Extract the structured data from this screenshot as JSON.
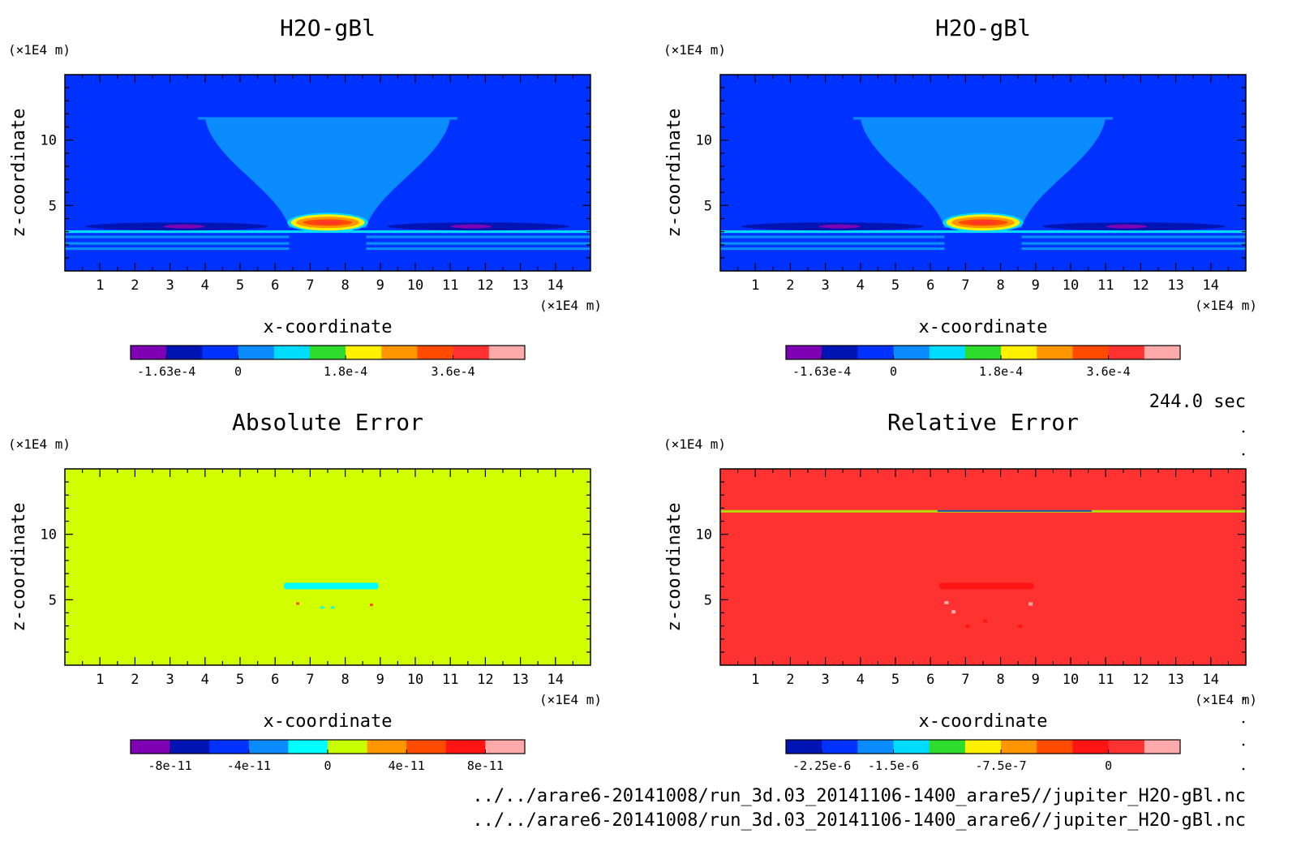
{
  "time_label": "244.0 sec",
  "file_paths": [
    "../../arare6-20141008/run_3d.03_20141106-1400_arare5//jupiter_H2O-gBl.nc",
    "../../arare6-20141008/run_3d.03_20141106-1400_arare6//jupiter_H2O-gBl.nc"
  ],
  "chart_data": [
    {
      "type": "heatmap",
      "title": "H2O-gBl",
      "xlabel": "x-coordinate",
      "ylabel": "z-coordinate",
      "x_unit": "(×1E4 m)",
      "y_unit": "(×1E4 m)",
      "xlim": [
        0,
        15
      ],
      "ylim": [
        0,
        15
      ],
      "x_ticks": [
        1,
        2,
        3,
        4,
        5,
        6,
        7,
        8,
        9,
        10,
        11,
        12,
        13,
        14
      ],
      "y_ticks": [
        5,
        10
      ],
      "background": "#0032ff",
      "colorbar": {
        "colors": [
          "#7f00b4",
          "#0014b4",
          "#0032ff",
          "#0a8cff",
          "#00dcff",
          "#2ddc2d",
          "#fff000",
          "#ff9600",
          "#ff4b00",
          "#ff3232",
          "#ffaaaa"
        ],
        "tick_labels": [
          "-1.63e-4",
          "0",
          "1.8e-4",
          "3.6e-4"
        ]
      }
    },
    {
      "type": "heatmap",
      "title": "H2O-gBl",
      "xlabel": "x-coordinate",
      "ylabel": "z-coordinate",
      "x_unit": "(×1E4 m)",
      "y_unit": "(×1E4 m)",
      "xlim": [
        0,
        15
      ],
      "ylim": [
        0,
        15
      ],
      "x_ticks": [
        1,
        2,
        3,
        4,
        5,
        6,
        7,
        8,
        9,
        10,
        11,
        12,
        13,
        14
      ],
      "y_ticks": [
        5,
        10
      ],
      "background": "#0032ff",
      "colorbar": {
        "colors": [
          "#7f00b4",
          "#0014b4",
          "#0032ff",
          "#0a8cff",
          "#00dcff",
          "#2ddc2d",
          "#fff000",
          "#ff9600",
          "#ff4b00",
          "#ff3232",
          "#ffaaaa"
        ],
        "tick_labels": [
          "-1.63e-4",
          "0",
          "1.8e-4",
          "3.6e-4"
        ]
      }
    },
    {
      "type": "heatmap",
      "title": "Absolute Error",
      "xlabel": "x-coordinate",
      "ylabel": "z-coordinate",
      "x_unit": "(×1E4 m)",
      "y_unit": "(×1E4 m)",
      "xlim": [
        0,
        15
      ],
      "ylim": [
        0,
        15
      ],
      "x_ticks": [
        1,
        2,
        3,
        4,
        5,
        6,
        7,
        8,
        9,
        10,
        11,
        12,
        13,
        14
      ],
      "y_ticks": [
        5,
        10
      ],
      "background": "#d2ff00",
      "colorbar": {
        "colors": [
          "#7f00b4",
          "#0014b4",
          "#0032ff",
          "#0a8cff",
          "#00ffff",
          "#c8ff00",
          "#ff9600",
          "#ff4b00",
          "#ff1414",
          "#ffaaaa"
        ],
        "tick_labels": [
          "-8e-11",
          "-4e-11",
          "0",
          "4e-11",
          "8e-11"
        ]
      }
    },
    {
      "type": "heatmap",
      "title": "Relative Error",
      "xlabel": "x-coordinate",
      "ylabel": "z-coordinate",
      "x_unit": "(×1E4 m)",
      "y_unit": "(×1E4 m)",
      "xlim": [
        0,
        15
      ],
      "ylim": [
        0,
        15
      ],
      "x_ticks": [
        1,
        2,
        3,
        4,
        5,
        6,
        7,
        8,
        9,
        10,
        11,
        12,
        13,
        14
      ],
      "y_ticks": [
        5,
        10
      ],
      "background": "#ff3232",
      "colorbar": {
        "colors": [
          "#0014b4",
          "#0032ff",
          "#0a8cff",
          "#00dcff",
          "#2ddc2d",
          "#fff000",
          "#ff9600",
          "#ff4b00",
          "#ff1414",
          "#ff3232",
          "#ffaaaa"
        ],
        "tick_labels": [
          "-2.25e-6",
          "-1.5e-6",
          "-7.5e-7",
          "0"
        ]
      }
    }
  ]
}
